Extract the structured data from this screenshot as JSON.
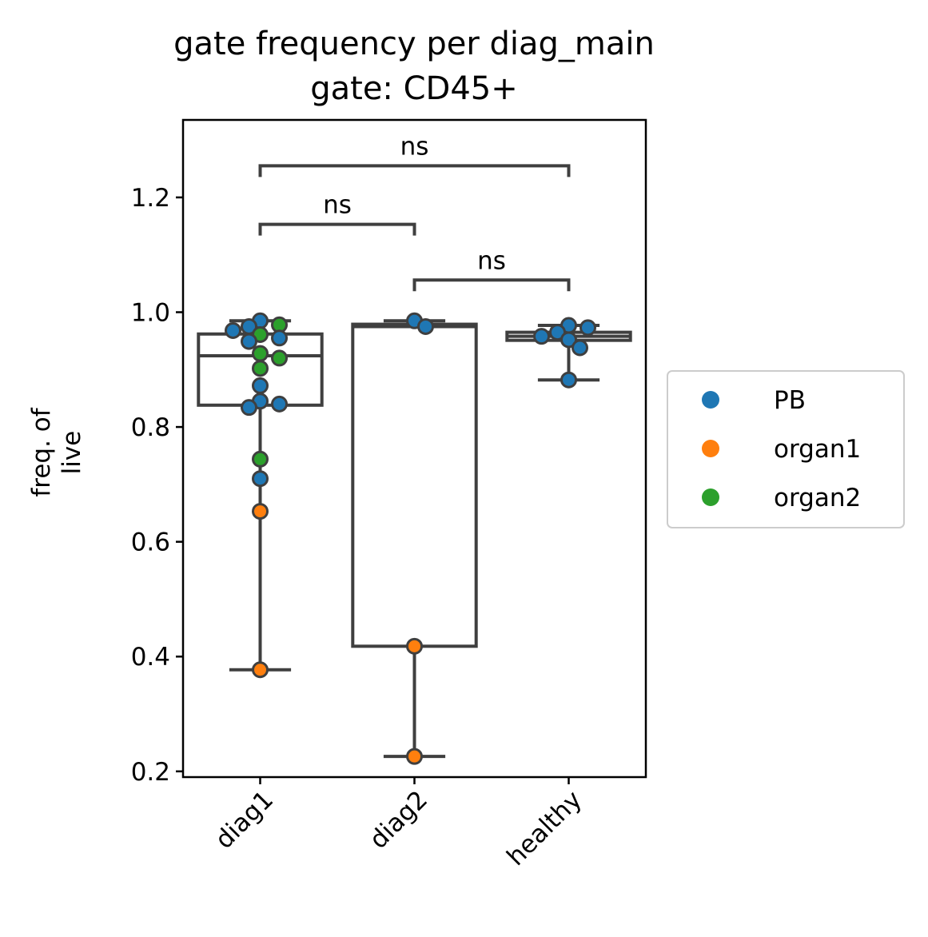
{
  "chart_data": {
    "type": "box",
    "title": "gate frequency per diag_main",
    "subtitle": "gate: CD45+",
    "xlabel": "",
    "ylabel_line1": "freq. of",
    "ylabel_line2": "live",
    "ylim": [
      0.19,
      1.335
    ],
    "yticks": [
      {
        "value": 0.2,
        "label": "0.2"
      },
      {
        "value": 0.4,
        "label": "0.4"
      },
      {
        "value": 0.6,
        "label": "0.6"
      },
      {
        "value": 0.8,
        "label": "0.8"
      },
      {
        "value": 1.0,
        "label": "1.0"
      },
      {
        "value": 1.2,
        "label": "1.2"
      }
    ],
    "categories": [
      "diag1",
      "diag2",
      "healthy"
    ],
    "boxes": [
      {
        "category": "diag1",
        "whisker_low": 0.377,
        "q1": 0.838,
        "median": 0.924,
        "q3": 0.962,
        "whisker_high": 0.985
      },
      {
        "category": "diag2",
        "whisker_low": 0.226,
        "q1": 0.418,
        "median": 0.975,
        "q3": 0.979,
        "whisker_high": 0.985
      },
      {
        "category": "healthy",
        "whisker_low": 0.882,
        "q1": 0.951,
        "median": 0.958,
        "q3": 0.965,
        "whisker_high": 0.977
      }
    ],
    "points": [
      {
        "category": "diag1",
        "y": 0.985,
        "group": "PB"
      },
      {
        "category": "diag1",
        "y": 0.978,
        "group": "organ2"
      },
      {
        "category": "diag1",
        "y": 0.975,
        "group": "PB"
      },
      {
        "category": "diag1",
        "y": 0.968,
        "group": "PB"
      },
      {
        "category": "diag1",
        "y": 0.961,
        "group": "organ2"
      },
      {
        "category": "diag1",
        "y": 0.955,
        "group": "PB"
      },
      {
        "category": "diag1",
        "y": 0.949,
        "group": "PB"
      },
      {
        "category": "diag1",
        "y": 0.928,
        "group": "organ2"
      },
      {
        "category": "diag1",
        "y": 0.92,
        "group": "organ2"
      },
      {
        "category": "diag1",
        "y": 0.902,
        "group": "organ2"
      },
      {
        "category": "diag1",
        "y": 0.872,
        "group": "PB"
      },
      {
        "category": "diag1",
        "y": 0.845,
        "group": "PB"
      },
      {
        "category": "diag1",
        "y": 0.84,
        "group": "PB"
      },
      {
        "category": "diag1",
        "y": 0.834,
        "group": "PB"
      },
      {
        "category": "diag1",
        "y": 0.744,
        "group": "organ2"
      },
      {
        "category": "diag1",
        "y": 0.71,
        "group": "PB"
      },
      {
        "category": "diag1",
        "y": 0.653,
        "group": "organ1"
      },
      {
        "category": "diag1",
        "y": 0.377,
        "group": "organ1"
      },
      {
        "category": "diag2",
        "y": 0.985,
        "group": "PB"
      },
      {
        "category": "diag2",
        "y": 0.975,
        "group": "PB"
      },
      {
        "category": "diag2",
        "y": 0.418,
        "group": "organ1"
      },
      {
        "category": "diag2",
        "y": 0.226,
        "group": "organ1"
      },
      {
        "category": "healthy",
        "y": 0.977,
        "group": "PB"
      },
      {
        "category": "healthy",
        "y": 0.973,
        "group": "PB"
      },
      {
        "category": "healthy",
        "y": 0.965,
        "group": "PB"
      },
      {
        "category": "healthy",
        "y": 0.958,
        "group": "PB"
      },
      {
        "category": "healthy",
        "y": 0.952,
        "group": "PB"
      },
      {
        "category": "healthy",
        "y": 0.938,
        "group": "PB"
      },
      {
        "category": "healthy",
        "y": 0.882,
        "group": "PB"
      }
    ],
    "significance": [
      {
        "from": "diag1",
        "to": "healthy",
        "y": 1.255,
        "label": "ns"
      },
      {
        "from": "diag1",
        "to": "diag2",
        "y": 1.153,
        "label": "ns"
      },
      {
        "from": "diag2",
        "to": "healthy",
        "y": 1.056,
        "label": "ns"
      }
    ],
    "legend": {
      "placement": "right",
      "entries": [
        {
          "name": "PB",
          "color": "#1f77b4"
        },
        {
          "name": "organ1",
          "color": "#ff7f0e"
        },
        {
          "name": "organ2",
          "color": "#2ca02c"
        }
      ]
    },
    "grid": false
  }
}
